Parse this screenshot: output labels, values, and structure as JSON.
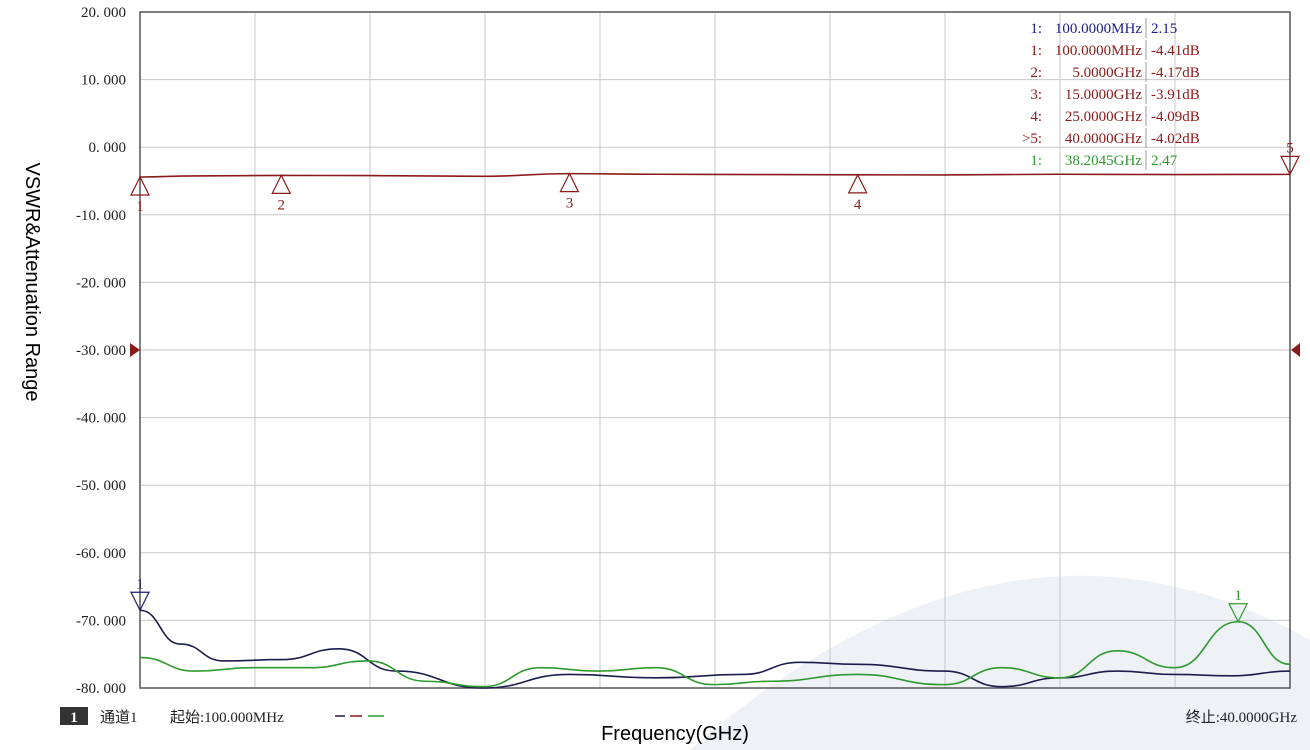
{
  "chart_data": {
    "type": "line",
    "xlabel": "Frequency(GHz)",
    "ylabel": "VSWR&Attenuation Range",
    "xlim": [
      0.1,
      40
    ],
    "ylim": [
      -80,
      20
    ],
    "y_ticks": [
      "20. 000",
      "10. 000",
      "0. 000",
      "-10. 000",
      "-20. 000",
      "-30. 000",
      "-40. 000",
      "-50. 000",
      "-60. 000",
      "-70. 000",
      "-80. 000"
    ],
    "grid": true,
    "reference_level": -30,
    "series": [
      {
        "color": "#8b1a1a",
        "x": [
          0.1,
          2.0,
          5.0,
          8.0,
          12.0,
          15.0,
          18.0,
          22.0,
          25.0,
          28.0,
          32.0,
          36.0,
          40.0
        ],
        "y": [
          -4.41,
          -4.25,
          -4.17,
          -4.2,
          -4.3,
          -3.91,
          -4.0,
          -4.05,
          -4.09,
          -4.1,
          -4.0,
          -4.05,
          -4.02
        ]
      },
      {
        "color": "#1c1c4e",
        "x": [
          0.1,
          1.5,
          3.0,
          5.0,
          7.0,
          9.0,
          12.0,
          15.0,
          18.0,
          21.0,
          23.0,
          25.0,
          28.0,
          30.0,
          32.0,
          34.0,
          36.0,
          38.0,
          40.0
        ],
        "y": [
          -68.5,
          -73.5,
          -76.0,
          -75.8,
          -74.2,
          -77.5,
          -80.0,
          -78.0,
          -78.5,
          -78.0,
          -76.2,
          -76.5,
          -77.5,
          -79.8,
          -78.5,
          -77.5,
          -78.0,
          -78.2,
          -77.5
        ]
      },
      {
        "color": "#2e9a2e",
        "x": [
          0.1,
          2.0,
          4.0,
          6.0,
          8.0,
          10.0,
          12.0,
          14.0,
          16.0,
          18.0,
          20.0,
          22.0,
          25.0,
          28.0,
          30.0,
          32.0,
          34.0,
          36.0,
          38.2,
          40.0
        ],
        "y": [
          -75.5,
          -77.5,
          -77.0,
          -77.0,
          -76.0,
          -79.0,
          -79.8,
          -77.0,
          -77.5,
          -77.0,
          -79.5,
          -79.0,
          -78.0,
          -79.5,
          -77.0,
          -78.5,
          -74.5,
          -77.0,
          -70.2,
          -76.5
        ]
      }
    ],
    "markers": [
      {
        "label": "1",
        "x": 0.1,
        "y": -4.41,
        "color": "#8b1a1a",
        "dir": "up"
      },
      {
        "label": "2",
        "x": 5.0,
        "y": -4.17,
        "color": "#8b1a1a",
        "dir": "up"
      },
      {
        "label": "3",
        "x": 15.0,
        "y": -3.91,
        "color": "#8b1a1a",
        "dir": "up"
      },
      {
        "label": "4",
        "x": 25.0,
        "y": -4.09,
        "color": "#8b1a1a",
        "dir": "up"
      },
      {
        "label": "5",
        "x": 40.0,
        "y": -4.02,
        "color": "#8b1a1a",
        "dir": "down"
      },
      {
        "label": "1",
        "x": 0.1,
        "y": -68.5,
        "color": "#1c1c6e",
        "dir": "down"
      },
      {
        "label": "1",
        "x": 38.2,
        "y": -70.2,
        "color": "#2e9a2e",
        "dir": "down"
      }
    ]
  },
  "marker_table": [
    {
      "num": "1:",
      "freq": "100.0000MHz",
      "value": "2.15",
      "color": "#1c1c8e"
    },
    {
      "num": "1:",
      "freq": "100.0000MHz",
      "value": "-4.41dB",
      "color": "#8b1a1a"
    },
    {
      "num": "2:",
      "freq": "5.0000GHz",
      "value": "-4.17dB",
      "color": "#8b1a1a"
    },
    {
      "num": "3:",
      "freq": "15.0000GHz",
      "value": "-3.91dB",
      "color": "#8b1a1a"
    },
    {
      "num": "4:",
      "freq": "25.0000GHz",
      "value": "-4.09dB",
      "color": "#8b1a1a"
    },
    {
      "num": ">5:",
      "freq": "40.0000GHz",
      "value": "-4.02dB",
      "color": "#8b1a1a"
    },
    {
      "num": "1:",
      "freq": "38.2045GHz",
      "value": "2.47",
      "color": "#2e9a2e"
    }
  ],
  "footer": {
    "channel_num": "1",
    "channel_label": "通道1",
    "start": "起始:100.000MHz",
    "stop": "终止:40.0000GHz"
  }
}
